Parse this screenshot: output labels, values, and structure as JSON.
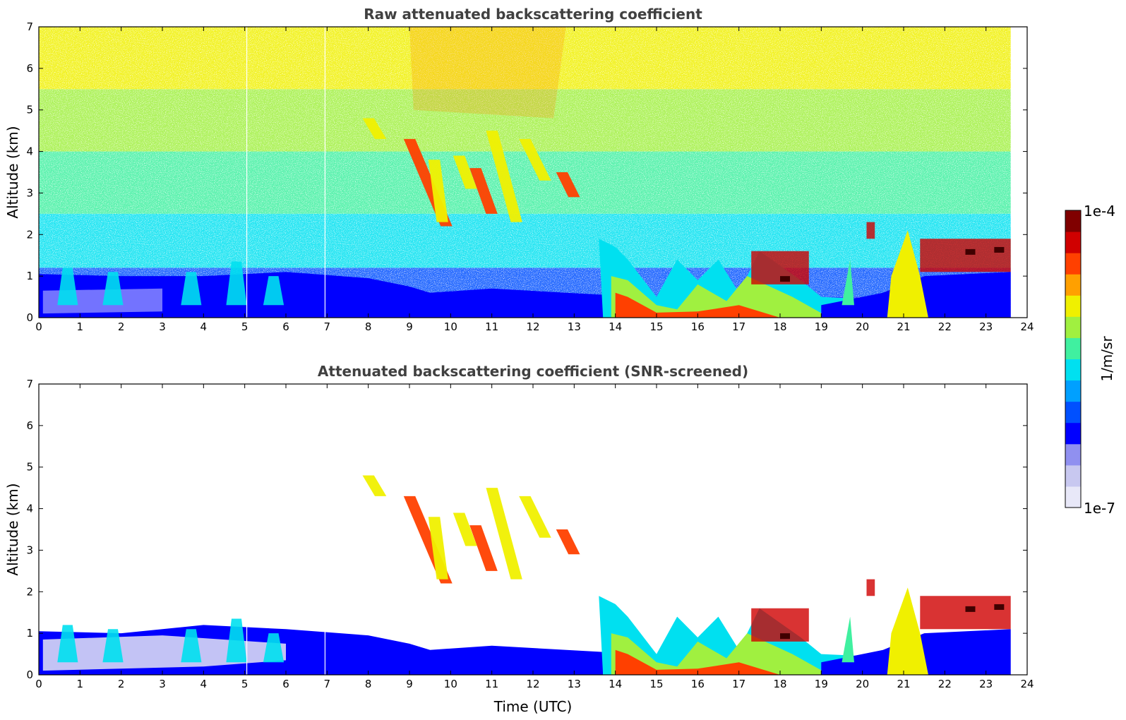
{
  "chart_data": [
    {
      "type": "heatmap",
      "title": "Raw attenuated backscattering coefficient",
      "xlabel": "",
      "ylabel": "Altitude (km)",
      "xlim": [
        0,
        24
      ],
      "ylim": [
        0,
        7
      ],
      "xticks": [
        "0",
        "1",
        "2",
        "3",
        "4",
        "5",
        "6",
        "7",
        "8",
        "9",
        "10",
        "11",
        "12",
        "13",
        "14",
        "15",
        "16",
        "17",
        "18",
        "19",
        "20",
        "21",
        "22",
        "23",
        "24"
      ],
      "yticks": [
        "0",
        "1",
        "2",
        "3",
        "4",
        "5",
        "6",
        "7"
      ],
      "data_end_x": 23.6,
      "layers": [
        {
          "name": "noise background",
          "x": [
            0,
            23.6
          ],
          "y": [
            0,
            7
          ],
          "level": "low-to-high with altitude"
        },
        {
          "name": "boundary layer",
          "x": [
            0,
            13.7
          ],
          "y": [
            0,
            1.0
          ],
          "level": "low"
        },
        {
          "name": "boundary layer convective",
          "x": [
            13.7,
            21.2
          ],
          "y": [
            0,
            1.8
          ],
          "level": "high near surface"
        },
        {
          "name": "mid-level virga",
          "x": [
            8.0,
            13.0
          ],
          "y": [
            2.2,
            4.8
          ],
          "level": "medium-high"
        },
        {
          "name": "clouds",
          "x": [
            17.2,
            23.6
          ],
          "y": [
            0.8,
            2.3
          ],
          "level": "saturated"
        }
      ]
    },
    {
      "type": "heatmap",
      "title": "Attenuated backscattering coefficient (SNR-screened)",
      "xlabel": "Time (UTC)",
      "ylabel": "Altitude (km)",
      "xlim": [
        0,
        24
      ],
      "ylim": [
        0,
        7
      ],
      "xticks": [
        "0",
        "1",
        "2",
        "3",
        "4",
        "5",
        "6",
        "7",
        "8",
        "9",
        "10",
        "11",
        "12",
        "13",
        "14",
        "15",
        "16",
        "17",
        "18",
        "19",
        "20",
        "21",
        "22",
        "23",
        "24"
      ],
      "yticks": [
        "0",
        "1",
        "2",
        "3",
        "4",
        "5",
        "6",
        "7"
      ],
      "data_end_x": 23.6,
      "layers": [
        {
          "name": "boundary layer",
          "x": [
            0,
            13.7
          ],
          "y": [
            0,
            1.2
          ],
          "level": "low"
        },
        {
          "name": "boundary layer convective",
          "x": [
            13.7,
            21.2
          ],
          "y": [
            0,
            1.8
          ],
          "level": "high near surface"
        },
        {
          "name": "mid-level virga",
          "x": [
            8.0,
            13.0
          ],
          "y": [
            2.2,
            4.8
          ],
          "level": "medium-high"
        },
        {
          "name": "clouds",
          "x": [
            17.2,
            23.6
          ],
          "y": [
            0.8,
            2.3
          ],
          "level": "saturated"
        }
      ]
    }
  ],
  "colorbar": {
    "label": "1/m/sr",
    "max_label": "1e-4",
    "min_label": "1e-7",
    "colormap": "jet",
    "colors": [
      "#e8e8f8",
      "#c8c8f0",
      "#9090f0",
      "#0000ff",
      "#0050ff",
      "#00a0ff",
      "#00e0f0",
      "#40f0a0",
      "#a0f040",
      "#f0f000",
      "#ffa000",
      "#ff4000",
      "#d00000",
      "#800000"
    ]
  }
}
